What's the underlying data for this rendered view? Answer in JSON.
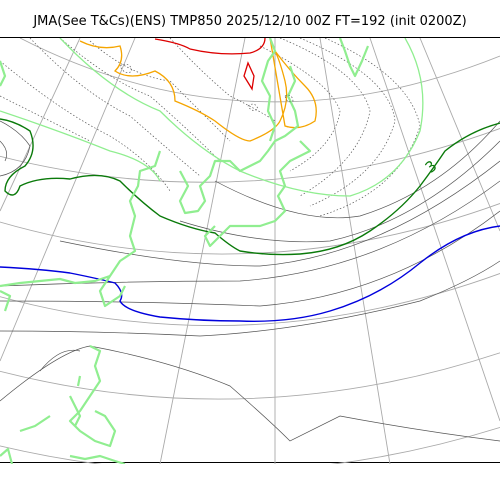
{
  "title": "JMA(See T&Cs)(ENS) TMP850 2025/12/10 00Z FT=192 (init 0200Z)",
  "contour_labels": [
    {
      "text": "3"
    }
  ],
  "colors": {
    "grid": "#aaaaaa",
    "coastline": "#90ee90",
    "isotherm_thin": "#555555",
    "isotherm_dotted": "#555555",
    "isotherm_light_green": "#90ee90",
    "isotherm_orange": "#f5a500",
    "isotherm_red": "#dd0000",
    "isotherm_green": "#0a7a0a",
    "isotherm_blue": "#0000dd"
  }
}
